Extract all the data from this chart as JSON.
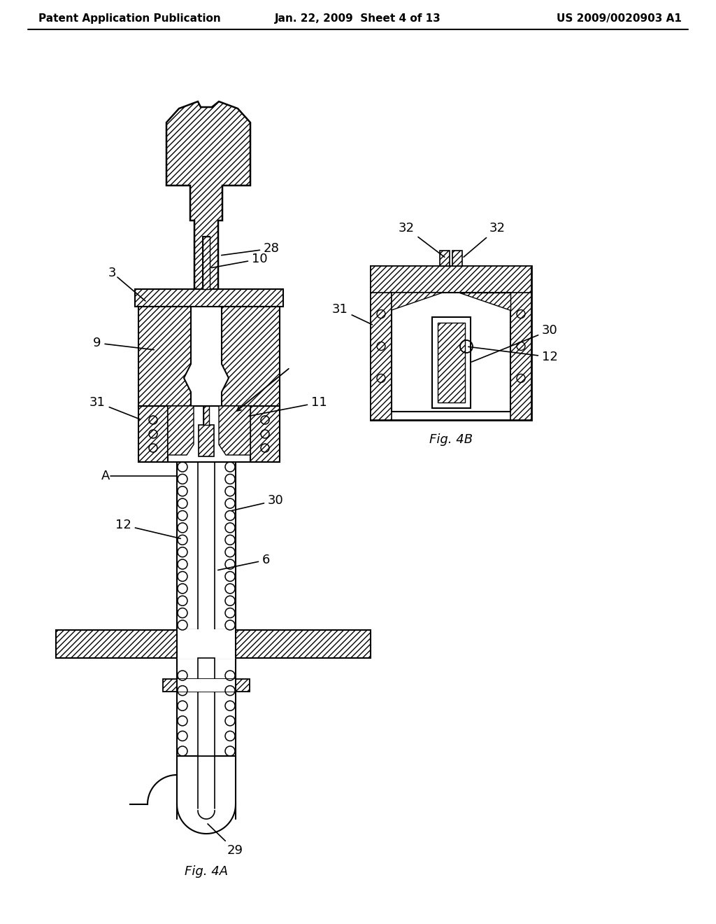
{
  "background_color": "#ffffff",
  "header_left": "Patent Application Publication",
  "header_center": "Jan. 22, 2009  Sheet 4 of 13",
  "header_right": "US 2009/0020903 A1",
  "fig4a_label": "Fig. 4A",
  "fig4b_label": "Fig. 4B",
  "line_color": "#000000"
}
